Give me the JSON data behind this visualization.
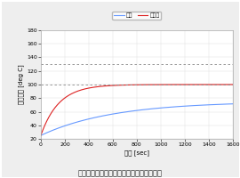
{
  "title": "図７　部品の平均温度（調整した設計案）",
  "xlabel": "時間 [sec]",
  "ylabel": "平均温度 [deg C]",
  "legend_labels": [
    "磁石",
    "コイル"
  ],
  "line_colors": [
    "#6699ff",
    "#dd2222"
  ],
  "dashed_line_values": [
    130,
    100
  ],
  "dashed_line_color": "#888888",
  "ylim": [
    20,
    180
  ],
  "xlim": [
    0,
    1600
  ],
  "yticks": [
    20,
    40,
    60,
    80,
    100,
    120,
    140,
    160,
    180
  ],
  "xticks": [
    0,
    200,
    400,
    600,
    800,
    1000,
    1200,
    1400,
    1600
  ],
  "magnet_start": 25,
  "magnet_asymptote": 75,
  "coil_start": 25,
  "coil_asymptote": 100,
  "time_constant_magnet": 600,
  "time_constant_coil": 150,
  "background_color": "#eeeeee",
  "plot_bg_color": "#ffffff",
  "border_color": "#cccccc",
  "tick_fontsize": 4.5,
  "label_fontsize": 5,
  "title_fontsize": 6,
  "legend_fontsize": 4.5
}
